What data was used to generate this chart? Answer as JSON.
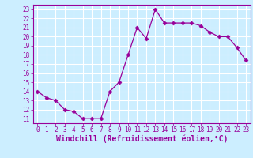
{
  "x": [
    0,
    1,
    2,
    3,
    4,
    5,
    6,
    7,
    8,
    9,
    10,
    11,
    12,
    13,
    14,
    15,
    16,
    17,
    18,
    19,
    20,
    21,
    22,
    23
  ],
  "y": [
    14.0,
    13.3,
    13.0,
    12.0,
    11.8,
    11.0,
    11.0,
    11.0,
    14.0,
    15.0,
    18.0,
    21.0,
    19.8,
    23.0,
    21.5,
    21.5,
    21.5,
    21.5,
    21.2,
    20.5,
    20.0,
    20.0,
    18.8,
    17.4
  ],
  "line_color": "#990099",
  "marker": "D",
  "marker_size": 2.5,
  "bg_color": "#cceeff",
  "grid_color": "#ffffff",
  "xlabel": "Windchill (Refroidissement éolien,°C)",
  "xlabel_color": "#990099",
  "xlim": [
    -0.5,
    23.5
  ],
  "ylim": [
    10.5,
    23.5
  ],
  "yticks": [
    11,
    12,
    13,
    14,
    15,
    16,
    17,
    18,
    19,
    20,
    21,
    22,
    23
  ],
  "xticks": [
    0,
    1,
    2,
    3,
    4,
    5,
    6,
    7,
    8,
    9,
    10,
    11,
    12,
    13,
    14,
    15,
    16,
    17,
    18,
    19,
    20,
    21,
    22,
    23
  ],
  "tick_fontsize": 5.5,
  "xlabel_fontsize": 7.0
}
